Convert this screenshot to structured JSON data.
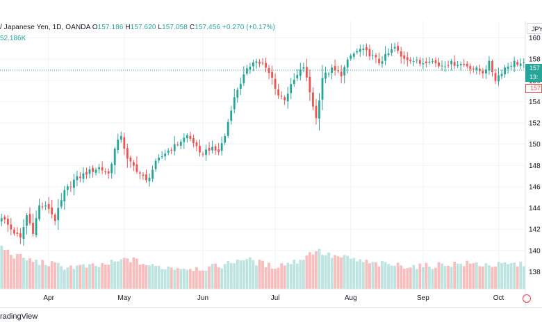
{
  "chart_data": {
    "type": "candlestick",
    "symbol_title": "/ Japanese Yen, 1D, OANDA",
    "ohlc_labels": {
      "o_label": "O",
      "o_value": "157.186",
      "h_label": "H",
      "h_value": "157.620",
      "l_label": "L",
      "l_value": "157.058",
      "c_label": "C",
      "c_value": "157.456",
      "change": "+0.270 (+0.17%)"
    },
    "volume_label": "52.186K",
    "currency": "JPY",
    "y_ticks": [
      138,
      140,
      142,
      144,
      146,
      148,
      150,
      152,
      154,
      156,
      158,
      160
    ],
    "y_tick_labels": [
      "138",
      "140",
      "142",
      "144",
      "146",
      "148",
      "150",
      "152",
      "154",
      "156",
      "158",
      "160"
    ],
    "ylim": [
      136.4,
      161.6
    ],
    "x_tick_labels": [
      "Apr",
      "May",
      "Jun",
      "Jul",
      "Aug",
      "Sep",
      "Oct"
    ],
    "x_tick_positions": [
      15,
      39,
      64,
      87,
      111,
      134,
      158
    ],
    "bar_count": 167,
    "last_price_tag": "157",
    "countdown_tag": "13:",
    "prev_close_tag": "157",
    "close_anchors": [
      [
        0,
        143.2
      ],
      [
        3,
        142.0
      ],
      [
        6,
        141.1
      ],
      [
        8,
        143.3
      ],
      [
        10,
        141.8
      ],
      [
        12,
        144.2
      ],
      [
        15,
        144.0
      ],
      [
        17,
        142.9
      ],
      [
        20,
        145.5
      ],
      [
        23,
        146.6
      ],
      [
        27,
        147.3
      ],
      [
        31,
        147.8
      ],
      [
        34,
        147.2
      ],
      [
        36,
        149.5
      ],
      [
        38,
        150.9
      ],
      [
        40,
        148.5
      ],
      [
        43,
        147.6
      ],
      [
        46,
        146.5
      ],
      [
        49,
        148.2
      ],
      [
        52,
        149.2
      ],
      [
        55,
        149.8
      ],
      [
        59,
        150.8
      ],
      [
        61,
        150.2
      ],
      [
        63,
        149.0
      ],
      [
        66,
        149.6
      ],
      [
        69,
        149.3
      ],
      [
        71,
        150.8
      ],
      [
        73,
        153.4
      ],
      [
        75,
        155.2
      ],
      [
        77,
        156.4
      ],
      [
        80,
        157.9
      ],
      [
        83,
        157.5
      ],
      [
        86,
        156.2
      ],
      [
        88,
        154.6
      ],
      [
        90,
        154.3
      ],
      [
        93,
        156.0
      ],
      [
        96,
        157.3
      ],
      [
        98,
        154.9
      ],
      [
        100,
        152.4
      ],
      [
        102,
        156.3
      ],
      [
        105,
        157.0
      ],
      [
        108,
        156.6
      ],
      [
        111,
        158.3
      ],
      [
        114,
        158.9
      ],
      [
        117,
        158.5
      ],
      [
        120,
        157.7
      ],
      [
        123,
        158.5
      ],
      [
        125,
        159.1
      ],
      [
        127,
        158.2
      ],
      [
        130,
        158.0
      ],
      [
        133,
        157.6
      ],
      [
        136,
        158.0
      ],
      [
        139,
        157.4
      ],
      [
        142,
        157.6
      ],
      [
        145,
        157.6
      ],
      [
        148,
        157.4
      ],
      [
        151,
        157.0
      ],
      [
        153,
        156.8
      ],
      [
        155,
        157.6
      ],
      [
        157,
        156.1
      ],
      [
        160,
        157.2
      ],
      [
        163,
        157.7
      ],
      [
        166,
        157.5
      ]
    ],
    "volume_anchors": [
      [
        0,
        30
      ],
      [
        4,
        24
      ],
      [
        10,
        20
      ],
      [
        20,
        16
      ],
      [
        30,
        16
      ],
      [
        38,
        20
      ],
      [
        40,
        22
      ],
      [
        48,
        16
      ],
      [
        60,
        15
      ],
      [
        66,
        15
      ],
      [
        72,
        18
      ],
      [
        76,
        22
      ],
      [
        80,
        20
      ],
      [
        86,
        16
      ],
      [
        94,
        20
      ],
      [
        100,
        28
      ],
      [
        104,
        24
      ],
      [
        110,
        22
      ],
      [
        118,
        18
      ],
      [
        126,
        17
      ],
      [
        134,
        16
      ],
      [
        142,
        18
      ],
      [
        150,
        18
      ],
      [
        158,
        17
      ],
      [
        166,
        18
      ]
    ]
  },
  "footer": {
    "brand": "radingView"
  }
}
